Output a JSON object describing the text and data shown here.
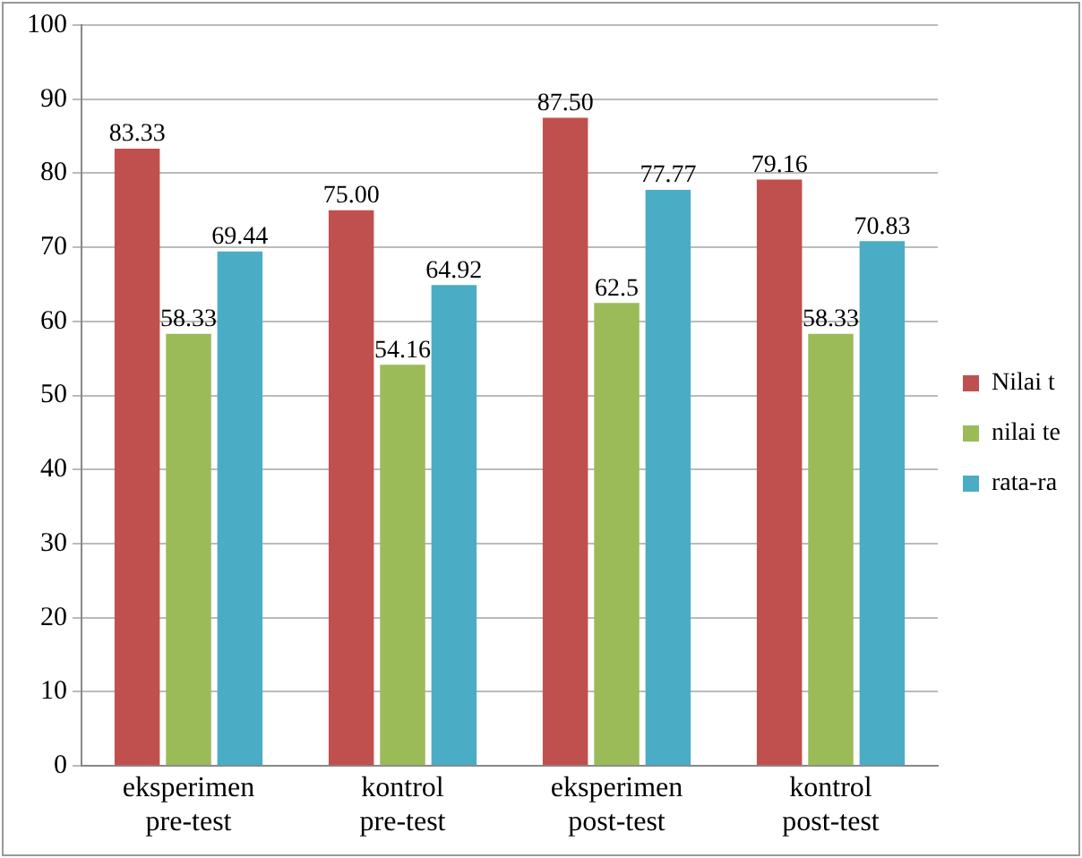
{
  "chart_data": {
    "type": "bar",
    "categories": [
      "eksperimen\npre-test",
      "kontrol\npre-test",
      "eksperimen\npost-test",
      "kontrol\npost-test"
    ],
    "series": [
      {
        "name": "Nilai t",
        "color": "#c0504d",
        "values": [
          83.33,
          75.0,
          87.5,
          79.16
        ],
        "value_labels": [
          "83.33",
          "75.00",
          "87.50",
          "79.16"
        ]
      },
      {
        "name": "nilai te",
        "color": "#9bbb59",
        "values": [
          58.33,
          54.16,
          62.5,
          58.33
        ],
        "value_labels": [
          "58.33",
          "54.16",
          "62.5",
          "58.33"
        ]
      },
      {
        "name": "rata-ra",
        "color": "#4bacc6",
        "values": [
          69.44,
          64.92,
          77.77,
          70.83
        ],
        "value_labels": [
          "69.44",
          "64.92",
          "77.77",
          "70.83"
        ]
      }
    ],
    "ylim": [
      0,
      100
    ],
    "yticks": [
      0,
      10,
      20,
      30,
      40,
      50,
      60,
      70,
      80,
      90,
      100
    ],
    "grid": "y",
    "legend": "right"
  }
}
